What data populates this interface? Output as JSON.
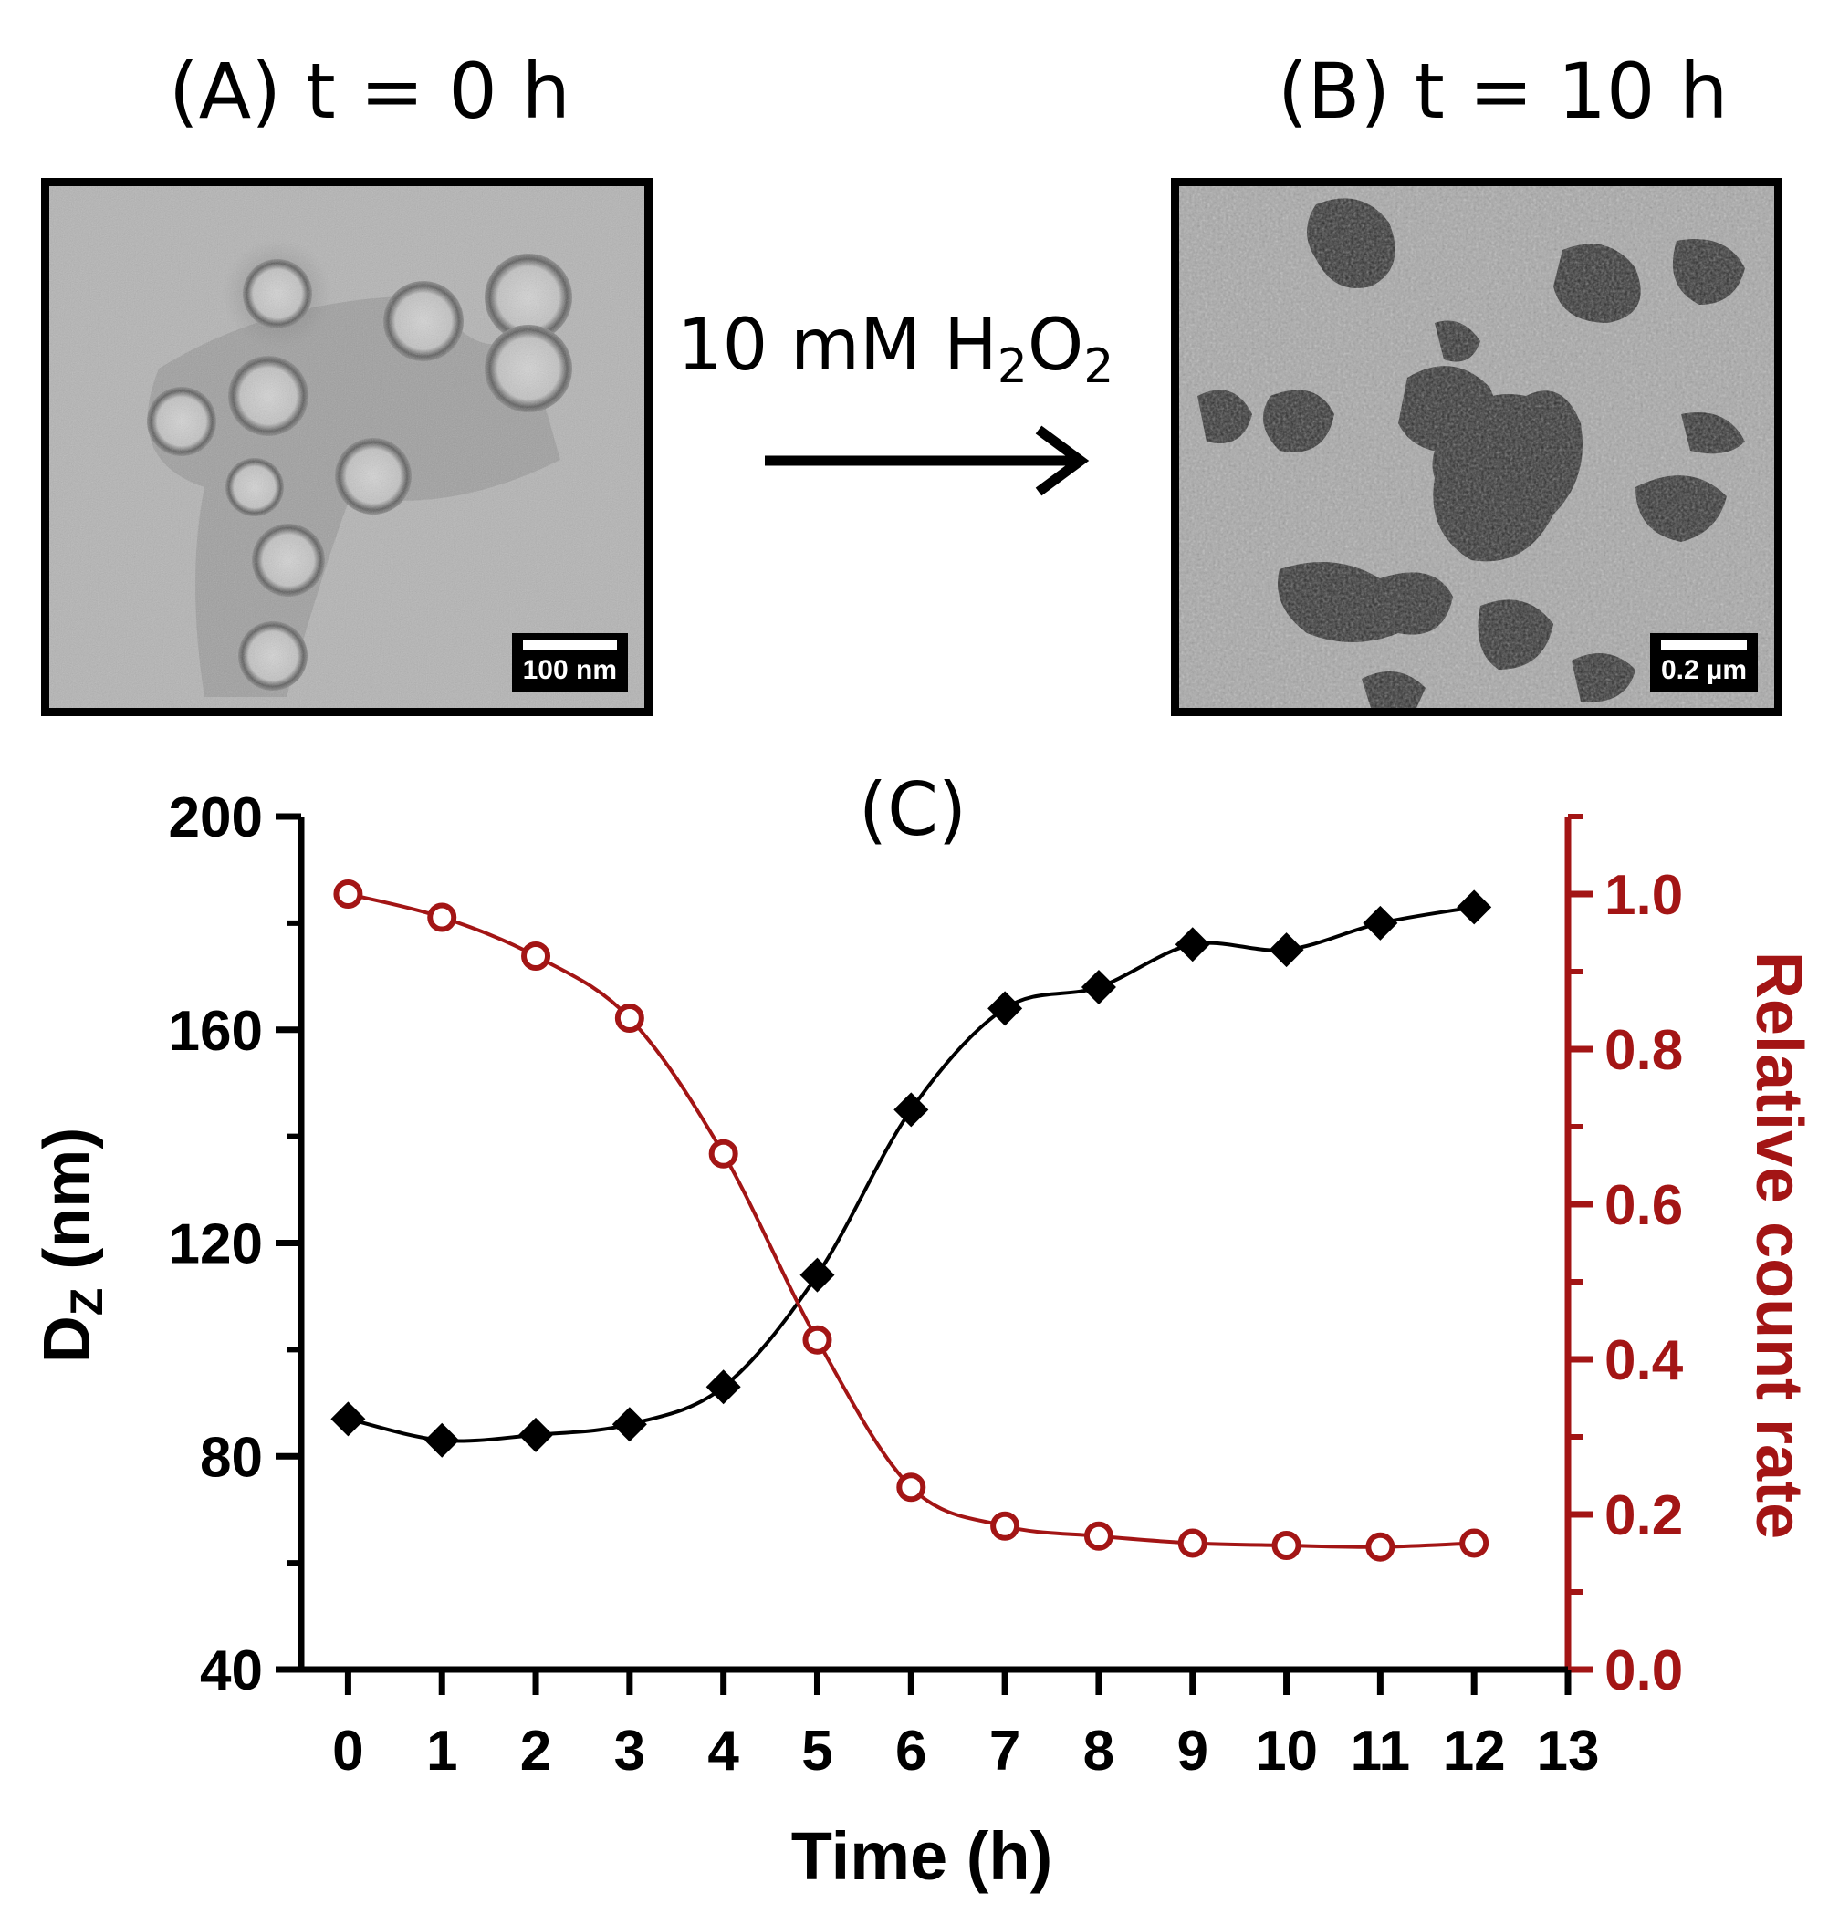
{
  "panel_a": {
    "label": "(A) t = 0 h",
    "scale_bar": "100 nm"
  },
  "panel_b": {
    "label": "(B) t = 10 h",
    "scale_bar": "0.2 µm"
  },
  "reaction": {
    "text": "10 mM H",
    "sub1": "2",
    "mid": "O",
    "sub2": "2"
  },
  "colors": {
    "left_series": "#000000",
    "right_series": "#a31515",
    "right_axis": "#a31515"
  },
  "chart_data": {
    "type": "line",
    "title": "(C)",
    "xlabel": "Time (h)",
    "ylabel": "DZ (nm)",
    "ylabel_main": "D",
    "ylabel_sub": "Z",
    "ylabel_rest": " (nm)",
    "y2label": "Relative count rate",
    "xlim": [
      -0.5,
      13
    ],
    "x_ticks": [
      0,
      1,
      2,
      3,
      4,
      5,
      6,
      7,
      8,
      9,
      10,
      11,
      12,
      13
    ],
    "ylim": [
      40,
      200
    ],
    "y_ticks": [
      40,
      80,
      120,
      160,
      200
    ],
    "y2lim": [
      0.0,
      1.1
    ],
    "y2_ticks": [
      "0.0",
      "0.2",
      "0.4",
      "0.6",
      "0.8",
      "1.0"
    ],
    "grid": false,
    "x": [
      0,
      1,
      2,
      3,
      4,
      5,
      6,
      7,
      8,
      9,
      10,
      11,
      12
    ],
    "series": [
      {
        "axis": "left",
        "marker": "diamond",
        "color": "#000000",
        "values": [
          87,
          83,
          84,
          86,
          93,
          114,
          145,
          164,
          168,
          176,
          175,
          180,
          183
        ]
      },
      {
        "axis": "right",
        "marker": "open-circle",
        "color": "#a31515",
        "values": [
          1.0,
          0.97,
          0.92,
          0.84,
          0.665,
          0.425,
          0.235,
          0.185,
          0.172,
          0.163,
          0.16,
          0.158,
          0.163
        ]
      }
    ]
  }
}
